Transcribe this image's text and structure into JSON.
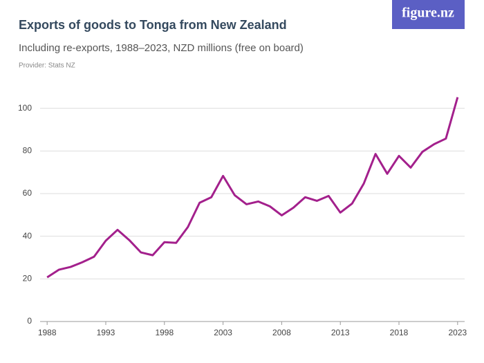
{
  "branding": "figure.nz",
  "chart_data": {
    "type": "line",
    "title": "Exports of goods to Tonga from New Zealand",
    "subtitle": "Including re-exports, 1988–2023, NZD millions (free on board)",
    "provider": "Provider: Stats NZ",
    "x": [
      1988,
      1989,
      1990,
      1991,
      1992,
      1993,
      1994,
      1995,
      1996,
      1997,
      1998,
      1999,
      2000,
      2001,
      2002,
      2003,
      2004,
      2005,
      2006,
      2007,
      2008,
      2009,
      2010,
      2011,
      2012,
      2013,
      2014,
      2015,
      2016,
      2017,
      2018,
      2019,
      2020,
      2021,
      2022,
      2023
    ],
    "series": [
      {
        "name": "Exports",
        "color": "#a3208c",
        "values": [
          20.7,
          24.3,
          25.6,
          27.8,
          30.4,
          37.9,
          43,
          38.2,
          32.4,
          31.1,
          37.2,
          36.9,
          44.3,
          55.7,
          58.3,
          68.3,
          59.2,
          55,
          56.3,
          54,
          49.8,
          53.4,
          58.3,
          56.6,
          58.9,
          51.1,
          55.3,
          64.7,
          78.6,
          69.3,
          77.7,
          72.2,
          79.6,
          83.2,
          85.8,
          105.2
        ]
      }
    ],
    "xlim": [
      1987.4,
      2023.6
    ],
    "xticks": [
      1988,
      1993,
      1998,
      2003,
      2008,
      2013,
      2018,
      2023
    ],
    "ylim": [
      0,
      108
    ],
    "yticks": [
      0,
      20,
      40,
      60,
      80,
      100
    ],
    "grid": true
  }
}
